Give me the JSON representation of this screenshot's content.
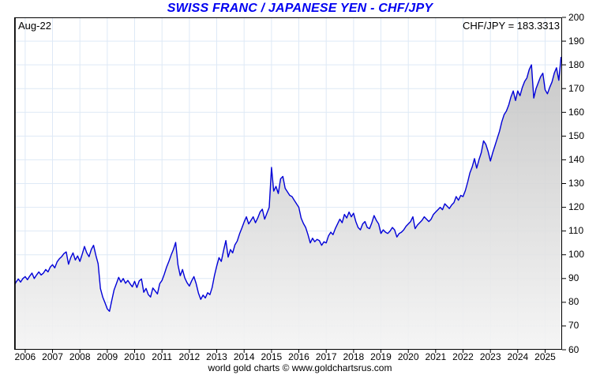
{
  "title": "SWISS FRANC / JAPANESE YEN - CHF/JPY",
  "annotations": {
    "date_label": "Aug-22",
    "quote_label": "CHF/JPY = 183.3313"
  },
  "footer": "world gold charts © www.goldchartsrus.com",
  "chart_data": {
    "type": "area",
    "title": "SWISS FRANC / JAPANESE YEN - CHF/JPY",
    "series_name": "CHF/JPY",
    "last_value": 183.3313,
    "as_of": "Aug-22",
    "grid": "on",
    "legend": "none",
    "ylim": [
      60,
      200
    ],
    "y_ticks": [
      60,
      70,
      80,
      90,
      100,
      110,
      120,
      130,
      140,
      150,
      160,
      170,
      180,
      190,
      200
    ],
    "x_tick_labels": [
      "2006",
      "2007",
      "2008",
      "2009",
      "2010",
      "2011",
      "2012",
      "2013",
      "2014",
      "2015",
      "2016",
      "2017",
      "2018",
      "2019",
      "2020",
      "2021",
      "2022",
      "2023",
      "2024",
      "2025"
    ],
    "xlim_years": [
      2005.6,
      2025.62
    ],
    "series_start_year": 2005.5833,
    "series_step_years": 0.0833333,
    "values": [
      87.0,
      88.5,
      89.8,
      88.5,
      90.0,
      90.8,
      89.5,
      91.0,
      92.3,
      90.0,
      91.5,
      92.8,
      91.5,
      92.3,
      93.8,
      92.8,
      94.8,
      95.8,
      94.5,
      97.0,
      98.3,
      99.2,
      100.5,
      101.2,
      96.0,
      98.8,
      100.8,
      97.8,
      99.5,
      97.2,
      100.2,
      103.5,
      100.8,
      99.2,
      102.2,
      104.0,
      99.8,
      96.2,
      85.8,
      82.2,
      79.8,
      77.2,
      76.2,
      80.8,
      85.2,
      87.8,
      90.5,
      88.5,
      90.0,
      88.0,
      89.2,
      87.8,
      86.5,
      88.8,
      86.2,
      89.0,
      89.8,
      84.2,
      85.8,
      83.2,
      82.2,
      86.0,
      84.8,
      83.5,
      87.8,
      89.2,
      91.8,
      94.8,
      97.2,
      99.8,
      102.2,
      105.2,
      95.8,
      91.2,
      93.8,
      90.2,
      88.2,
      86.8,
      89.0,
      90.8,
      87.8,
      83.8,
      81.2,
      83.0,
      81.8,
      84.0,
      83.2,
      86.2,
      91.2,
      95.2,
      98.8,
      97.2,
      101.8,
      106.0,
      99.0,
      102.2,
      100.8,
      104.2,
      105.8,
      108.8,
      111.2,
      113.8,
      116.0,
      113.0,
      114.5,
      116.0,
      113.5,
      115.5,
      118.0,
      119.2,
      115.0,
      117.5,
      120.0,
      136.8,
      126.8,
      128.8,
      125.8,
      132.0,
      133.0,
      128.0,
      126.5,
      125.0,
      124.5,
      123.0,
      121.5,
      120.0,
      115.5,
      113.2,
      111.5,
      108.5,
      105.0,
      107.0,
      105.5,
      106.5,
      106.0,
      104.0,
      105.5,
      105.0,
      108.0,
      109.5,
      108.5,
      111.0,
      113.0,
      115.0,
      113.5,
      117.0,
      115.5,
      118.0,
      116.0,
      117.5,
      114.0,
      111.5,
      110.5,
      113.0,
      114.0,
      111.5,
      111.0,
      113.5,
      116.5,
      114.5,
      113.0,
      109.0,
      110.5,
      109.5,
      109.0,
      110.0,
      111.5,
      110.5,
      107.5,
      109.0,
      109.5,
      110.5,
      112.0,
      113.0,
      114.0,
      116.0,
      111.0,
      112.5,
      113.5,
      114.5,
      116.0,
      115.0,
      114.0,
      115.0,
      117.0,
      118.0,
      119.0,
      120.0,
      119.0,
      121.5,
      120.5,
      119.5,
      121.0,
      122.0,
      124.5,
      123.0,
      125.0,
      124.5,
      127.0,
      130.5,
      134.5,
      137.0,
      140.5,
      136.5,
      140.0,
      143.0,
      148.0,
      146.5,
      143.5,
      139.5,
      143.0,
      146.0,
      149.0,
      152.0,
      156.0,
      159.0,
      160.5,
      163.0,
      166.5,
      169.0,
      165.0,
      169.0,
      167.0,
      170.5,
      173.0,
      174.5,
      178.0,
      180.0,
      166.0,
      170.0,
      172.5,
      175.0,
      176.5,
      169.5,
      167.8,
      170.5,
      172.8,
      176.5,
      178.8,
      173.5,
      183.3313
    ],
    "colors": {
      "line": "#0000d8",
      "grid": "#dee9f6",
      "title": "#0000f0",
      "fill_top": "#bcbcbc",
      "fill_bottom": "#f4f4f4",
      "axis": "#000000"
    }
  }
}
